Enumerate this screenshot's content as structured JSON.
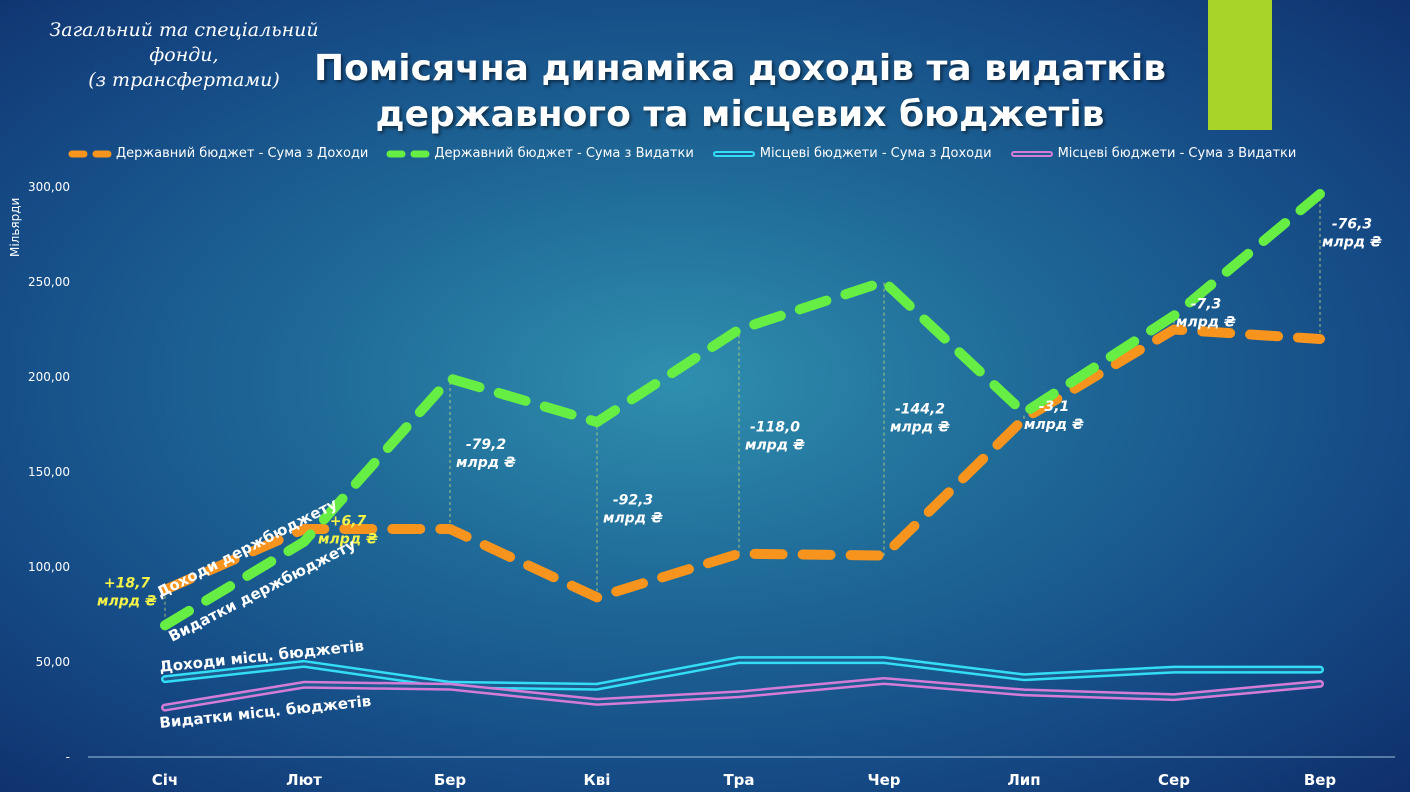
{
  "subtitle": [
    "Загальний та спеціальний фонди,",
    "(з трансфертами)"
  ],
  "title": [
    "Помісячна динаміка доходів та видатків",
    "державного та місцевих бюджетів"
  ],
  "colors": {
    "accent_bar": "#a8d42a",
    "state_income": "#f7941d",
    "state_expense": "#66ee44",
    "local_income": "#33ddf5",
    "local_expense": "#d57bd8",
    "positive_annotation": "#f3f34a",
    "negative_annotation": "#ffffff"
  },
  "chart_data": {
    "type": "line",
    "ylabel": "Мільярди",
    "ylim": [
      0,
      300
    ],
    "yticks": [
      0,
      50,
      100,
      150,
      200,
      250,
      300
    ],
    "ytick_labels": [
      "-",
      "50,00",
      "100,00",
      "150,00",
      "200,00",
      "250,00",
      "300,00"
    ],
    "grid": false,
    "legend_position": "top",
    "categories": [
      "Січ",
      "Лют",
      "Бер",
      "Кві",
      "Тра",
      "Чер",
      "Лип",
      "Сер",
      "Вер"
    ],
    "series": [
      {
        "name": "Державний бюджет   - Сума з Доходи",
        "style": "dashed",
        "values": [
          88,
          120,
          120,
          84,
          107,
          106,
          178,
          225,
          220
        ]
      },
      {
        "name": "Державний бюджет  - Сума з Видатки",
        "style": "dashed",
        "values": [
          69.3,
          113.3,
          199.2,
          176.3,
          225,
          250.2,
          181.1,
          232.3,
          296.3
        ]
      },
      {
        "name": "Місцеві бюджети - Сума з Доходи",
        "style": "double",
        "values": [
          41,
          49,
          38,
          37,
          51,
          51,
          42,
          46,
          46
        ]
      },
      {
        "name": "Місцеві бюджети - Сума з Видатки",
        "style": "double",
        "values": [
          26,
          38,
          37,
          29,
          33,
          40,
          34,
          31.5,
          38.5
        ]
      }
    ],
    "gap_annotations": [
      {
        "value": "+18,7",
        "unit": "млрд ₴",
        "positive": true
      },
      {
        "value": "+6,7",
        "unit": "млрд ₴",
        "positive": true
      },
      {
        "value": "-79,2",
        "unit": "млрд ₴",
        "positive": false
      },
      {
        "value": "-92,3",
        "unit": "млрд ₴",
        "positive": false
      },
      {
        "value": "-118,0",
        "unit": "млрд ₴",
        "positive": false
      },
      {
        "value": "-144,2",
        "unit": "млрд ₴",
        "positive": false
      },
      {
        "value": "-3,1",
        "unit": "млрд ₴",
        "positive": false
      },
      {
        "value": "-7,3",
        "unit": "млрд ₴",
        "positive": false
      },
      {
        "value": "-76,3",
        "unit": "млрд ₴",
        "positive": false
      }
    ],
    "line_labels": [
      "Доходи держбюджету",
      "Видатки держбюджету",
      "Доходи місц. бюджетів",
      "Видатки місц. бюджетів"
    ]
  }
}
